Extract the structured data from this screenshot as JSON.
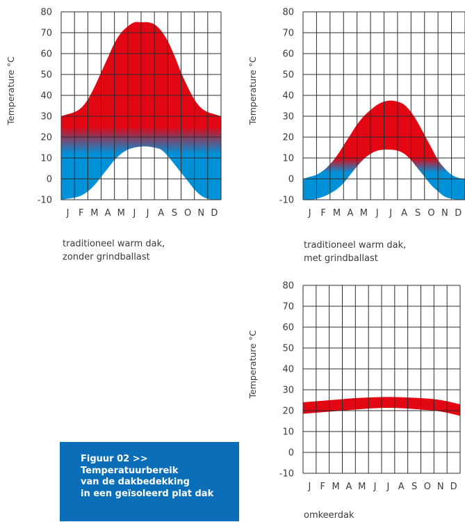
{
  "colors": {
    "hot": "#e30613",
    "cold": "#0092d9",
    "grid": "#2b2b2b",
    "box": "#0a6fb8"
  },
  "figure": {
    "lines": [
      "Figuur 02  >>",
      "Temperatuurbereik",
      "van de dakbedekking",
      "in een geïsoleerd plat dak"
    ]
  },
  "chart_data": [
    {
      "type": "area",
      "ylabel": "Temperature °C",
      "ylim": [
        -10,
        80
      ],
      "yticks": [
        "80",
        "70",
        "60",
        "50",
        "40",
        "30",
        "20",
        "10",
        "0",
        "-10"
      ],
      "categories": [
        "J",
        "F",
        "M",
        "A",
        "M",
        "J",
        "J",
        "A",
        "S",
        "O",
        "N",
        "D"
      ],
      "caption": [
        "traditioneel warm dak,",
        "zonder grindballast"
      ],
      "x": [
        0,
        0.5,
        1,
        1.5,
        2,
        2.5,
        3,
        3.5,
        4,
        4.5,
        5,
        5.5,
        6,
        6.5,
        7,
        7.5,
        8,
        8.5,
        9,
        9.5,
        10,
        10.5,
        11,
        11.5,
        12
      ],
      "upper": [
        30,
        31,
        32,
        34,
        38,
        44,
        51,
        58,
        65,
        70,
        73,
        75,
        75,
        75,
        74,
        71,
        66,
        59,
        51,
        44,
        38,
        34,
        32,
        31,
        30
      ],
      "lower": [
        -10,
        -9.5,
        -9,
        -8,
        -6,
        -3,
        1,
        5,
        9,
        12,
        14,
        15,
        15.5,
        15.5,
        15,
        14,
        11,
        7,
        3,
        -1,
        -5,
        -8,
        -9.5,
        -10,
        -10
      ],
      "gradient": {
        "hot_above": 25,
        "cold_below": 12
      }
    },
    {
      "type": "area",
      "ylabel": "Temperature °C",
      "ylim": [
        -10,
        80
      ],
      "yticks": [
        "80",
        "70",
        "60",
        "50",
        "40",
        "30",
        "20",
        "10",
        "0",
        "-10"
      ],
      "categories": [
        "J",
        "F",
        "M",
        "A",
        "M",
        "J",
        "J",
        "A",
        "S",
        "O",
        "N",
        "D"
      ],
      "caption": [
        "traditioneel warm dak,",
        "met grindballast"
      ],
      "x": [
        0,
        0.5,
        1,
        1.5,
        2,
        2.5,
        3,
        3.5,
        4,
        4.5,
        5,
        5.5,
        6,
        6.5,
        7,
        7.5,
        8,
        8.5,
        9,
        9.5,
        10,
        10.5,
        11,
        11.5,
        12
      ],
      "upper": [
        0,
        1,
        2,
        4,
        7,
        11,
        16,
        21,
        26,
        30,
        33,
        35.5,
        37,
        37.5,
        37,
        35.5,
        32,
        27,
        21,
        15,
        9,
        5,
        2,
        0.5,
        0
      ],
      "lower": [
        -10,
        -10,
        -9.5,
        -8.5,
        -7,
        -5,
        -2,
        2,
        6,
        9.5,
        12,
        13.5,
        14,
        14,
        13.5,
        12,
        9,
        5,
        1,
        -3,
        -6,
        -8.5,
        -9.5,
        -10,
        -10
      ],
      "gradient": {
        "hot_above": 10,
        "cold_below": 3
      }
    },
    {
      "type": "area",
      "ylabel": "Temperature °C",
      "ylim": [
        -10,
        80
      ],
      "yticks": [
        "80",
        "70",
        "60",
        "50",
        "40",
        "30",
        "20",
        "10",
        "0",
        "-10"
      ],
      "categories": [
        "J",
        "F",
        "M",
        "A",
        "M",
        "J",
        "J",
        "A",
        "S",
        "O",
        "N",
        "D"
      ],
      "caption": [
        "omkeerdak"
      ],
      "x": [
        0,
        1,
        2,
        3,
        4,
        5,
        6,
        7,
        8,
        9,
        10,
        11,
        12
      ],
      "upper": [
        24,
        24.5,
        25,
        25.5,
        26,
        26.3,
        26.5,
        26.5,
        26.3,
        26,
        25.5,
        24.5,
        23
      ],
      "lower": [
        18.5,
        19,
        19.5,
        20,
        20.5,
        21,
        21.3,
        21.3,
        21,
        20.5,
        20,
        19,
        17.5
      ],
      "gradient": null
    }
  ]
}
